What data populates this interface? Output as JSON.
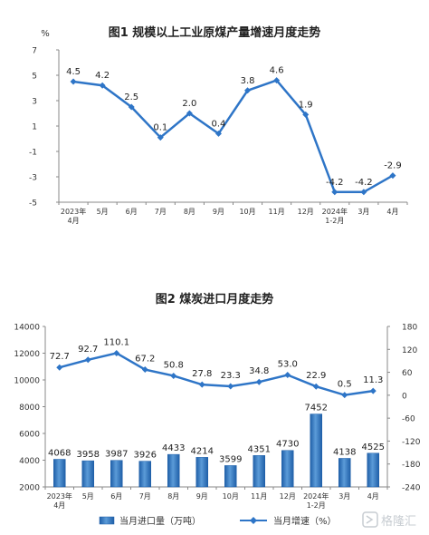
{
  "chart_data": [
    {
      "type": "line",
      "title": "图1  规模以上工业原煤产量增速月度走势",
      "ylabel": "%",
      "ylim": [
        -5,
        7
      ],
      "yticks": [
        "7",
        "5",
        "3",
        "1",
        "-1",
        "-3",
        "-5"
      ],
      "categories": [
        "2023年\n4月",
        "5月",
        "6月",
        "7月",
        "8月",
        "9月",
        "10月",
        "11月",
        "12月",
        "2024年\n1-2月",
        "3月",
        "4月"
      ],
      "series": [
        {
          "name": "",
          "color": "#2e75c7",
          "values": [
            4.5,
            4.2,
            2.5,
            0.1,
            2.0,
            0.4,
            3.8,
            4.6,
            1.9,
            -4.2,
            -4.2,
            -2.9
          ],
          "labels": [
            "4.5",
            "4.2",
            "2.5",
            "0.1",
            "2.0",
            "0.4",
            "3.8",
            "4.6",
            "1.9",
            "-4.2",
            "-4.2",
            "-2.9"
          ]
        }
      ]
    },
    {
      "type": "bar",
      "title": "图2  煤炭进口月度走势",
      "categories": [
        "2023年\n4月",
        "5月",
        "6月",
        "7月",
        "8月",
        "9月",
        "10月",
        "11月",
        "12月",
        "2024年\n1-2月",
        "3月",
        "4月"
      ],
      "ylim": [
        2000,
        14000
      ],
      "yticks": [
        "14000",
        "12000",
        "10000",
        "8000",
        "6000",
        "4000",
        "2000"
      ],
      "y2lim": [
        -240,
        180
      ],
      "y2ticks": [
        "180",
        "120",
        "60",
        "0",
        "-60",
        "-120",
        "-180",
        "-240"
      ],
      "series": [
        {
          "name": "当月进口量（万吨）",
          "type": "bar",
          "axis": "left",
          "color": "#2e75c7",
          "values": [
            4068,
            3958,
            3987,
            3926,
            4433,
            4214,
            3599,
            4351,
            4730,
            7452,
            4138,
            4525
          ],
          "labels": [
            "4068",
            "3958",
            "3987",
            "3926",
            "4433",
            "4214",
            "3599",
            "4351",
            "4730",
            "7452",
            "4138",
            "4525"
          ]
        },
        {
          "name": "当月增速（%）",
          "type": "line",
          "axis": "right",
          "color": "#2e75c7",
          "values": [
            72.7,
            92.7,
            110.1,
            67.2,
            50.8,
            27.8,
            23.3,
            34.8,
            53.0,
            22.9,
            0.5,
            11.3
          ],
          "labels": [
            "72.7",
            "92.7",
            "110.1",
            "67.2",
            "50.8",
            "27.8",
            "23.3",
            "34.8",
            "53.0",
            "22.9",
            "0.5",
            "11.3"
          ]
        }
      ],
      "legend_position": "bottom"
    }
  ],
  "watermark": {
    "text": "格隆汇"
  }
}
